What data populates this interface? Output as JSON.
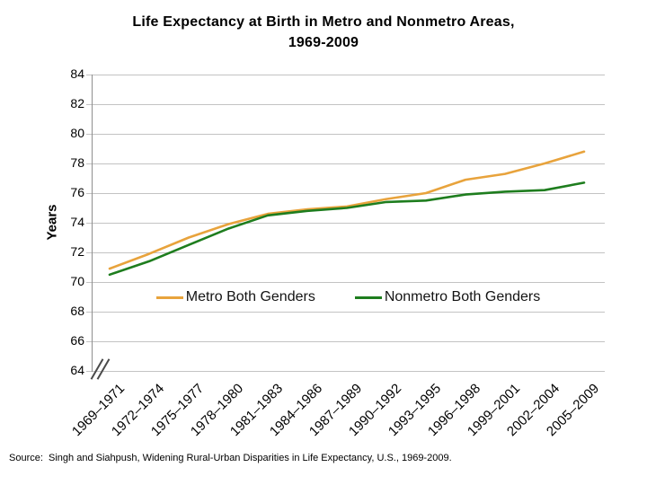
{
  "chart_data": {
    "type": "line",
    "title": "Life Expectancy at Birth in Metro and Nonmetro Areas,",
    "title_line2": "1969-2009",
    "ylabel": "Years",
    "ylim": [
      64,
      84
    ],
    "y_ticks": [
      84,
      82,
      80,
      78,
      76,
      74,
      72,
      70,
      68,
      66,
      64
    ],
    "grid": true,
    "legend_position": "inside-plot-center",
    "axis_break": "y-axis-bottom",
    "categories": [
      "1969–1971",
      "1972–1974",
      "1975–1977",
      "1978–1980",
      "1981–1983",
      "1984–1986",
      "1987–1989",
      "1990–1992",
      "1993–1995",
      "1996–1998",
      "1999–2001",
      "2002–2004",
      "2005–2009"
    ],
    "series": [
      {
        "key": "metro",
        "name": "Metro Both Genders",
        "color": "#E8A33C",
        "values": [
          70.9,
          71.9,
          73.0,
          73.9,
          74.6,
          74.9,
          75.1,
          75.6,
          76.0,
          76.9,
          77.3,
          78.0,
          78.8
        ]
      },
      {
        "key": "nonmetro",
        "name": "Nonmetro Both Genders",
        "color": "#1E7D1E",
        "values": [
          70.5,
          71.4,
          72.5,
          73.6,
          74.5,
          74.8,
          75.0,
          75.4,
          75.5,
          75.9,
          76.1,
          76.2,
          76.7
        ]
      }
    ]
  },
  "footer": {
    "source_note": "Source:  Singh and Siahpush, Widening Rural-Urban Disparities in Life Expectancy, U.S., 1969-2009."
  }
}
